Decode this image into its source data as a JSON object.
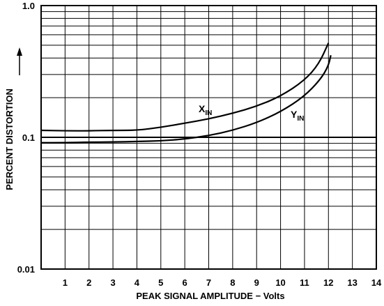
{
  "chart_data": {
    "type": "line",
    "title": "",
    "xlabel": "PEAK SIGNAL AMPLITUDE − Volts",
    "ylabel": "PERCENT DISTORTION",
    "x_ticks": [
      "1",
      "2",
      "3",
      "4",
      "5",
      "6",
      "7",
      "8",
      "9",
      "10",
      "11",
      "12",
      "13",
      "14"
    ],
    "y_ticks": [
      "0.01",
      "0.1",
      "1.0"
    ],
    "xlim": [
      0,
      14
    ],
    "ylim": [
      0.01,
      1.0
    ],
    "y_scale": "log",
    "grid": true,
    "colors": {
      "line": "#000000",
      "grid": "#000000",
      "background": "#ffffff"
    },
    "series": [
      {
        "label": "X",
        "subscript": "IN",
        "points": [
          [
            0,
            0.113
          ],
          [
            1,
            0.112
          ],
          [
            2,
            0.112
          ],
          [
            3,
            0.113
          ],
          [
            4,
            0.113
          ],
          [
            5,
            0.119
          ],
          [
            6,
            0.128
          ],
          [
            7,
            0.138
          ],
          [
            8,
            0.152
          ],
          [
            9,
            0.172
          ],
          [
            10,
            0.205
          ],
          [
            11,
            0.27
          ],
          [
            11.6,
            0.36
          ],
          [
            12,
            0.52
          ]
        ]
      },
      {
        "label": "Y",
        "subscript": "IN",
        "points": [
          [
            0,
            0.091
          ],
          [
            1,
            0.091
          ],
          [
            2,
            0.092
          ],
          [
            3,
            0.092
          ],
          [
            4,
            0.093
          ],
          [
            5,
            0.094
          ],
          [
            6,
            0.097
          ],
          [
            7,
            0.103
          ],
          [
            8,
            0.113
          ],
          [
            9,
            0.129
          ],
          [
            10,
            0.156
          ],
          [
            11,
            0.205
          ],
          [
            11.7,
            0.28
          ],
          [
            12,
            0.35
          ],
          [
            12.1,
            0.42
          ]
        ]
      }
    ]
  }
}
